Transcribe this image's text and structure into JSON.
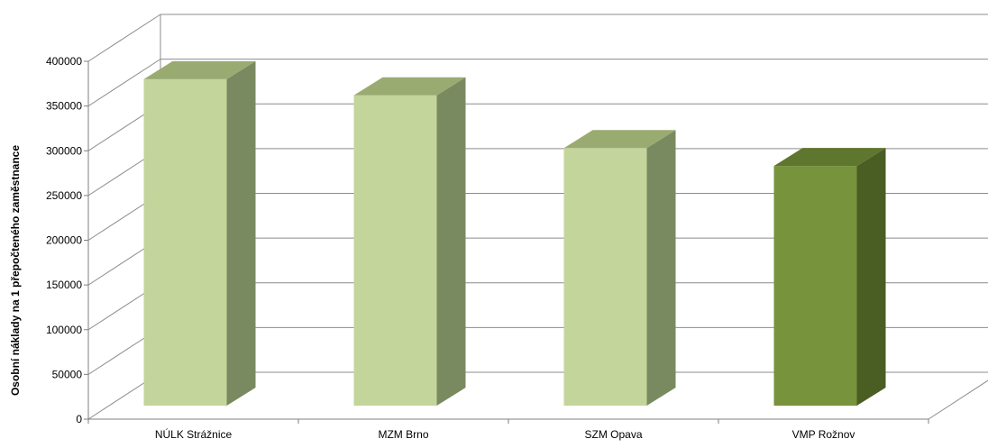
{
  "chart_data": {
    "type": "bar",
    "title": "",
    "xlabel": "",
    "ylabel": "Osobní náklady na 1 přepočteného zaměstnance",
    "ylim": [
      0,
      400000
    ],
    "yticks": [
      0,
      50000,
      100000,
      150000,
      200000,
      250000,
      300000,
      350000,
      400000
    ],
    "categories": [
      "NÚLK Strážnice",
      "MZM Brno",
      "SZM Opava",
      "VMP Rožnov"
    ],
    "values": [
      380000,
      362000,
      303000,
      283000
    ],
    "highlight_index": 3,
    "grid": true,
    "three_d": true,
    "colors": {
      "bar_front": "#c4d59c",
      "bar_top": "#9aab72",
      "bar_side": "#7a8a60",
      "highlight_front": "#77933c",
      "highlight_top": "#5e762d",
      "highlight_side": "#4a5e24",
      "grid": "#8c8c8c"
    }
  }
}
